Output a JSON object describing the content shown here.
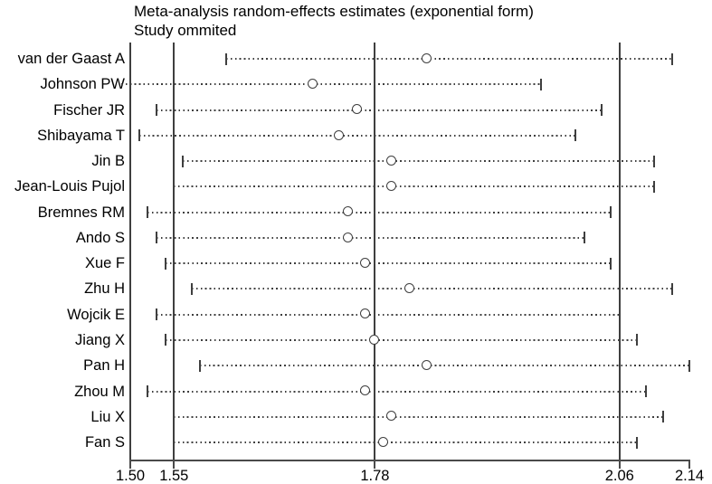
{
  "title": {
    "line1": "Meta-analysis random-effects estimates (exponential form)",
    "line2": "Study ommited"
  },
  "colors": {
    "line": "#3f3f3f",
    "axis": "#4a4a4a",
    "text": "#000000",
    "background": "#ffffff",
    "marker_fill": "#ffffff"
  },
  "chart_data": {
    "type": "scatter",
    "subtype": "leave-one-out-sensitivity-forest",
    "title": "Meta-analysis random-effects estimates (exponential form)",
    "subtitle": "Study ommited",
    "xlabel": "",
    "ylabel": "",
    "xlim": [
      1.5,
      2.14
    ],
    "grid": false,
    "legend": false,
    "xticks": [
      {
        "value": 1.5,
        "label": "1.50"
      },
      {
        "value": 1.55,
        "label": "1.55"
      },
      {
        "value": 1.78,
        "label": "1.78"
      },
      {
        "value": 2.06,
        "label": "2.06"
      },
      {
        "value": 2.14,
        "label": "2.14"
      }
    ],
    "reference_lines": [
      1.55,
      1.78,
      2.06
    ],
    "studies": [
      {
        "label": "van der Gaast A",
        "lower": 1.61,
        "estimate": 1.84,
        "upper": 2.12,
        "left_cap": true,
        "right_cap": true
      },
      {
        "label": "Johnson PW",
        "lower": 1.49,
        "estimate": 1.71,
        "upper": 1.97,
        "left_cap": false,
        "right_cap": true
      },
      {
        "label": "Fischer JR",
        "lower": 1.53,
        "estimate": 1.76,
        "upper": 2.04,
        "left_cap": true,
        "right_cap": true
      },
      {
        "label": "Shibayama T",
        "lower": 1.51,
        "estimate": 1.74,
        "upper": 2.01,
        "left_cap": true,
        "right_cap": true
      },
      {
        "label": "Jin B",
        "lower": 1.56,
        "estimate": 1.8,
        "upper": 2.1,
        "left_cap": true,
        "right_cap": true
      },
      {
        "label": "Jean-Louis Pujol",
        "lower": 1.55,
        "estimate": 1.8,
        "upper": 2.1,
        "left_cap": true,
        "right_cap": true
      },
      {
        "label": "Bremnes RM",
        "lower": 1.52,
        "estimate": 1.75,
        "upper": 2.05,
        "left_cap": true,
        "right_cap": true
      },
      {
        "label": "Ando S",
        "lower": 1.53,
        "estimate": 1.75,
        "upper": 2.02,
        "left_cap": true,
        "right_cap": true
      },
      {
        "label": "Xue F",
        "lower": 1.54,
        "estimate": 1.77,
        "upper": 2.05,
        "left_cap": true,
        "right_cap": true
      },
      {
        "label": "Zhu H",
        "lower": 1.57,
        "estimate": 1.82,
        "upper": 2.12,
        "left_cap": true,
        "right_cap": true
      },
      {
        "label": "Wojcik E",
        "lower": 1.53,
        "estimate": 1.77,
        "upper": 2.06,
        "left_cap": true,
        "right_cap": true
      },
      {
        "label": "Jiang X",
        "lower": 1.54,
        "estimate": 1.78,
        "upper": 2.08,
        "left_cap": true,
        "right_cap": true
      },
      {
        "label": "Pan H",
        "lower": 1.58,
        "estimate": 1.84,
        "upper": 2.14,
        "left_cap": true,
        "right_cap": true
      },
      {
        "label": "Zhou M",
        "lower": 1.52,
        "estimate": 1.77,
        "upper": 2.09,
        "left_cap": true,
        "right_cap": true
      },
      {
        "label": "Liu X",
        "lower": 1.55,
        "estimate": 1.8,
        "upper": 2.11,
        "left_cap": true,
        "right_cap": true
      },
      {
        "label": "Fan S",
        "lower": 1.55,
        "estimate": 1.79,
        "upper": 2.08,
        "left_cap": true,
        "right_cap": true
      }
    ]
  }
}
